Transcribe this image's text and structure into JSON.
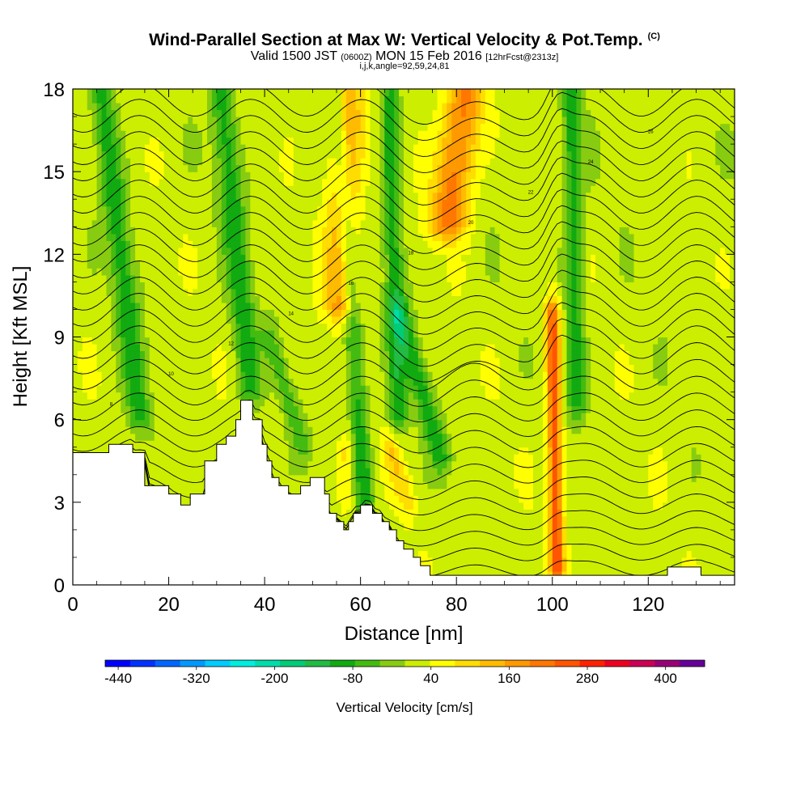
{
  "title": {
    "main": "Wind-Parallel Section at Max W: Vertical Velocity & Pot.Temp.",
    "copyright": "(C)",
    "valid_prefix": "Valid 1500 JST",
    "valid_utc": "(0600Z)",
    "valid_date": "MON 15 Feb 2016",
    "forecast": "[12hrFcst@2313z]",
    "indices": "i,j,k,angle=92,59,24,81"
  },
  "chart_data": {
    "type": "heatmap",
    "xlabel": "Distance [nm]",
    "ylabel": "Height [Kft MSL]",
    "xlim": [
      0,
      138
    ],
    "ylim": [
      0,
      18
    ],
    "x_ticks": [
      0,
      20,
      40,
      60,
      80,
      100,
      120
    ],
    "y_ticks": [
      0,
      3,
      6,
      9,
      12,
      15,
      18
    ],
    "x_tick_labels": [
      "0",
      "20",
      "40",
      "60",
      "80",
      "100",
      "120"
    ],
    "y_tick_labels": [
      "0",
      "3",
      "6",
      "9",
      "12",
      "15",
      "18"
    ],
    "grid": false,
    "terrain_profile": [
      [
        0,
        4.8
      ],
      [
        7.5,
        4.8
      ],
      [
        7.5,
        5.1
      ],
      [
        12.5,
        5.1
      ],
      [
        12.5,
        4.8
      ],
      [
        15,
        4.8
      ],
      [
        15,
        3.6
      ],
      [
        17.5,
        3.6
      ],
      [
        17.5,
        3.6
      ],
      [
        20,
        3.6
      ],
      [
        20,
        3.3
      ],
      [
        22.5,
        3.3
      ],
      [
        22.5,
        2.9
      ],
      [
        24.5,
        2.9
      ],
      [
        24.5,
        3.3
      ],
      [
        27.5,
        3.3
      ],
      [
        27.5,
        4.5
      ],
      [
        30,
        4.5
      ],
      [
        30,
        5.1
      ],
      [
        32,
        5.1
      ],
      [
        32,
        5.4
      ],
      [
        34,
        5.4
      ],
      [
        34,
        6.0
      ],
      [
        35,
        6.0
      ],
      [
        35,
        6.7
      ],
      [
        37.5,
        6.7
      ],
      [
        37.5,
        6.0
      ],
      [
        39.5,
        6.0
      ],
      [
        39.5,
        5.1
      ],
      [
        40.5,
        5.1
      ],
      [
        40.5,
        4.5
      ],
      [
        41.5,
        4.5
      ],
      [
        41.5,
        3.9
      ],
      [
        43,
        3.9
      ],
      [
        43,
        3.6
      ],
      [
        45,
        3.6
      ],
      [
        45,
        3.3
      ],
      [
        47.5,
        3.3
      ],
      [
        47.5,
        3.6
      ],
      [
        49.5,
        3.6
      ],
      [
        49.5,
        3.9
      ],
      [
        52.5,
        3.9
      ],
      [
        52.5,
        3.3
      ],
      [
        53.5,
        3.3
      ],
      [
        53.5,
        2.6
      ],
      [
        55,
        2.6
      ],
      [
        55,
        2.3
      ],
      [
        56.5,
        2.3
      ],
      [
        56.5,
        2.0
      ],
      [
        57.5,
        2.0
      ],
      [
        57.5,
        2.3
      ],
      [
        58.5,
        2.3
      ],
      [
        58.5,
        2.6
      ],
      [
        60,
        2.6
      ],
      [
        60,
        2.9
      ],
      [
        62.5,
        2.9
      ],
      [
        62.5,
        2.6
      ],
      [
        64.5,
        2.6
      ],
      [
        64.5,
        2.3
      ],
      [
        66,
        2.3
      ],
      [
        66,
        2.0
      ],
      [
        67.5,
        2.0
      ],
      [
        67.5,
        1.6
      ],
      [
        69,
        1.6
      ],
      [
        69,
        1.3
      ],
      [
        71,
        1.3
      ],
      [
        71,
        1.0
      ],
      [
        72.5,
        1.0
      ],
      [
        72.5,
        0.7
      ],
      [
        74.5,
        0.7
      ],
      [
        74.5,
        0.35
      ],
      [
        124,
        0.35
      ],
      [
        124,
        0.65
      ],
      [
        131,
        0.65
      ],
      [
        131,
        0.35
      ],
      [
        138,
        0.35
      ]
    ],
    "vertical_velocity": {
      "units": "cm/s",
      "colorbar_label": "Vertical Velocity [cm/s]",
      "colorbar_ticks": [
        -440,
        -320,
        -200,
        -80,
        40,
        160,
        280,
        400
      ],
      "colorbar_tick_labels": [
        "-440",
        "-320",
        "-200",
        "-80",
        "40",
        "160",
        "280",
        "400"
      ],
      "colorbar_min": -460,
      "colorbar_max": 460,
      "colorbar_step": 40,
      "colors": [
        "#0000ff",
        "#0033ff",
        "#0066ff",
        "#0099ff",
        "#00ccff",
        "#00eedd",
        "#00ddaa",
        "#00cc77",
        "#22bb44",
        "#11aa11",
        "#44bb11",
        "#88cc11",
        "#ccee00",
        "#ffff00",
        "#ffdd00",
        "#ffbb00",
        "#ff9900",
        "#ff7700",
        "#ff5500",
        "#ff2200",
        "#ee0022",
        "#cc0055",
        "#990077",
        "#660099"
      ],
      "background_value": 40,
      "features": [
        {
          "kind": "downdraft",
          "x0": 14,
          "x1": 6,
          "z0": 6.0,
          "z1": 18,
          "width": 2.5,
          "value": -80
        },
        {
          "kind": "downdraft",
          "x0": 37,
          "x1": 31,
          "z0": 7.0,
          "z1": 18,
          "width": 2.5,
          "value": -80
        },
        {
          "kind": "downdraft",
          "x0": 48,
          "x1": 41,
          "z0": 5.0,
          "z1": 9,
          "width": 2.0,
          "value": -40
        },
        {
          "kind": "downdraft",
          "x0": 61,
          "x1": 55,
          "z0": 3.0,
          "z1": 18,
          "width": 2.0,
          "value": -80
        },
        {
          "kind": "downdraft",
          "x0": 68,
          "x1": 66,
          "z0": 6.0,
          "z1": 18,
          "width": 2.0,
          "value": -80
        },
        {
          "kind": "downdraft",
          "x0": 77,
          "x1": 68,
          "z0": 4.5,
          "z1": 10,
          "width": 2.2,
          "value": -80
        },
        {
          "kind": "downdraft",
          "x0": 105,
          "x1": 104,
          "z0": 6.5,
          "z1": 18,
          "width": 2.0,
          "value": -80
        },
        {
          "kind": "updraft",
          "x0": 56,
          "x1": 57,
          "z0": 10,
          "z1": 18,
          "width": 3.5,
          "value": 200
        },
        {
          "kind": "updraft",
          "x0": 78,
          "x1": 82,
          "z0": 13,
          "z1": 18,
          "width": 4.0,
          "value": 240
        },
        {
          "kind": "updraft",
          "x0": 70,
          "x1": 66,
          "z0": 3.0,
          "z1": 5,
          "width": 2.0,
          "value": 120
        },
        {
          "kind": "updraft",
          "x0": 101,
          "x1": 100,
          "z0": 0.5,
          "z1": 10,
          "width": 1.5,
          "value": 280
        },
        {
          "kind": "updraft",
          "x0": 57,
          "x1": 57,
          "z0": 3.0,
          "z1": 5,
          "width": 1.5,
          "value": 120
        }
      ]
    },
    "potential_temperature": {
      "contour_count": 30,
      "contour_labels": [
        "8",
        "10",
        "12",
        "14",
        "16",
        "18",
        "20",
        "22",
        "24",
        "26"
      ]
    }
  }
}
